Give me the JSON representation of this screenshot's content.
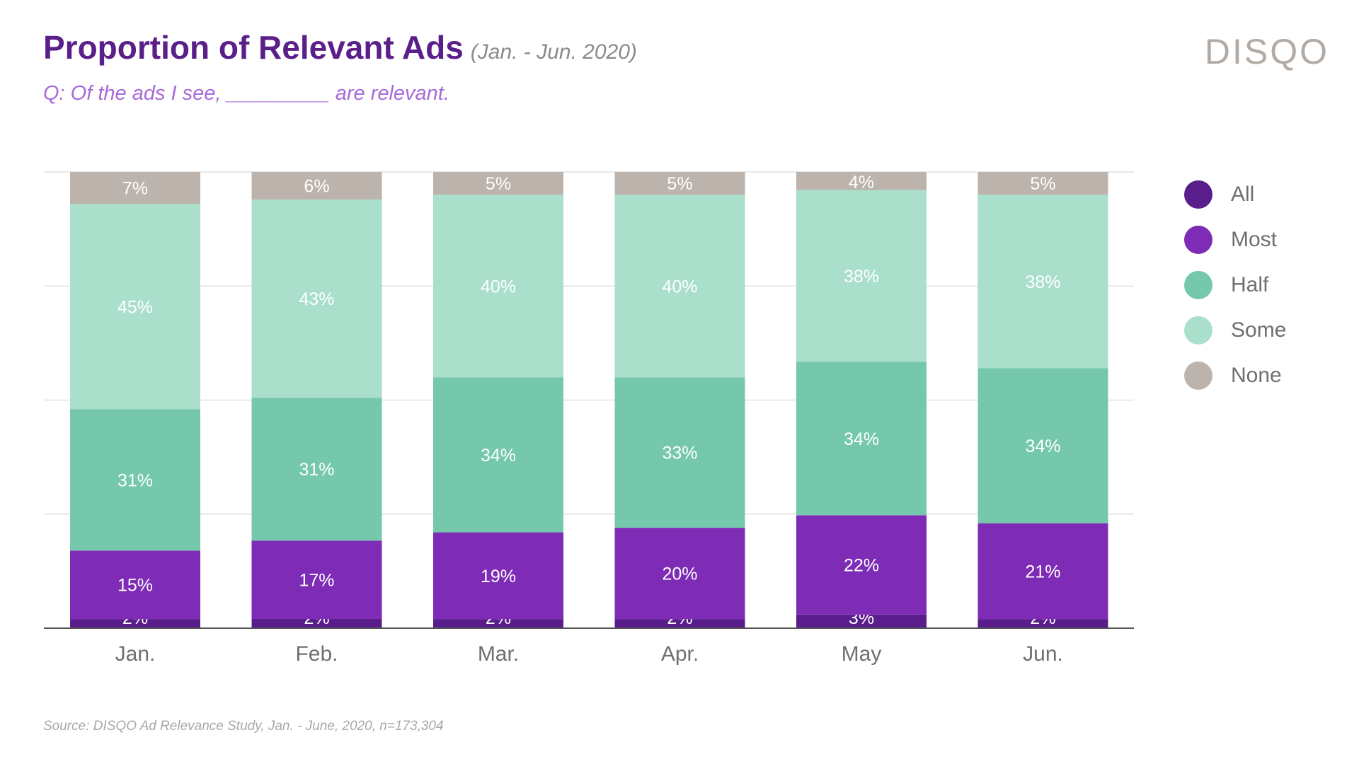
{
  "header": {
    "title": "Proportion of Relevant Ads",
    "date_range": "(Jan. - Jun. 2020)",
    "subtitle": "Q: Of the ads I see, _________ are relevant.",
    "brand": "DISQO"
  },
  "footer": {
    "source": "Source: DISQO Ad Relevance Study, Jan. - June, 2020, n=173,304"
  },
  "colors": {
    "All": "#5a1e8c",
    "Most": "#7e2bb5",
    "Half": "#75c8ac",
    "Some": "#a9dfcb",
    "None": "#bbb3ac",
    "label": "#ffffff",
    "grid": "#d0d0d0",
    "axis": "#555555",
    "tick": "#6f6f6f"
  },
  "chart_data": {
    "type": "bar",
    "stacked": true,
    "title": "Proportion of Relevant Ads",
    "xlabel": "",
    "ylabel": "",
    "ylim": [
      0,
      100
    ],
    "grid": true,
    "legend_position": "right",
    "categories": [
      "Jan.",
      "Feb.",
      "Mar.",
      "Apr.",
      "May",
      "Jun."
    ],
    "series": [
      {
        "name": "All",
        "values": [
          2,
          2,
          2,
          2,
          3,
          2
        ],
        "labels": [
          "2%",
          "2%",
          "2%",
          "2%",
          "3%",
          "2%"
        ]
      },
      {
        "name": "Most",
        "values": [
          15,
          17,
          19,
          20,
          22,
          21
        ],
        "labels": [
          "15%",
          "17%",
          "19%",
          "20%",
          "22%",
          "21%"
        ]
      },
      {
        "name": "Half",
        "values": [
          31,
          31,
          34,
          33,
          34,
          34
        ],
        "labels": [
          "31%",
          "31%",
          "34%",
          "33%",
          "34%",
          "34%"
        ]
      },
      {
        "name": "Some",
        "values": [
          45,
          43,
          40,
          40,
          38,
          38
        ],
        "labels": [
          "45%",
          "43%",
          "40%",
          "40%",
          "38%",
          "38%"
        ]
      },
      {
        "name": "None",
        "values": [
          7,
          6,
          5,
          5,
          4,
          5
        ],
        "labels": [
          "7%",
          "6%",
          "5%",
          "5%",
          "4%",
          "5%"
        ]
      }
    ]
  }
}
